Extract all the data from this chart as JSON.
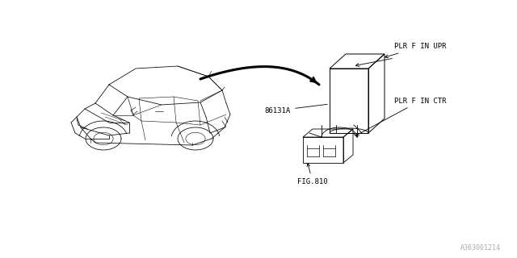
{
  "bg_color": "#ffffff",
  "fig_width": 6.4,
  "fig_height": 3.2,
  "dpi": 100,
  "label_86131A": "86131A",
  "label_PLR_UPR": "PLR F IN UPR",
  "label_PLR_CTR": "PLR F IN CTR",
  "label_FIG810": "FIG.810",
  "footer_text": "A363001214",
  "font_size_parts": 6.5,
  "font_size_footer": 6.0
}
